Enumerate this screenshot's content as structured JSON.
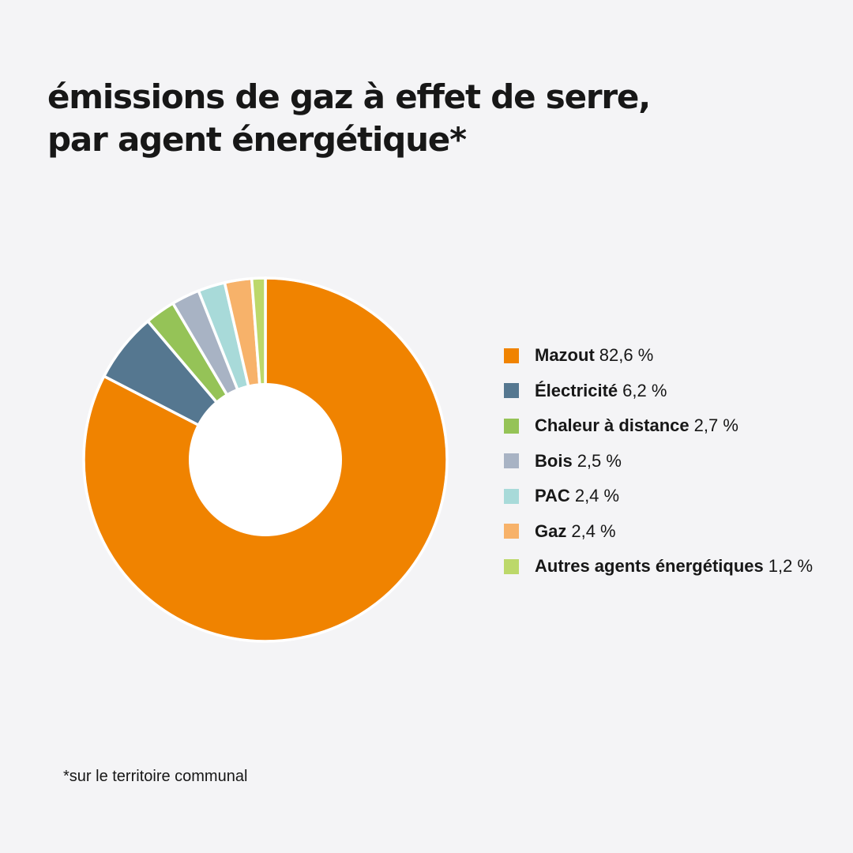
{
  "title_lines": [
    "émissions de gaz à effet de serre,",
    "par agent énergétique*"
  ],
  "footnote": "*sur le territoire communal",
  "chart_data": {
    "type": "pie",
    "variant": "donut",
    "legend_position": "right",
    "start_angle_deg": 0,
    "direction": "clockwise",
    "categories": [
      "Mazout",
      "Électricité",
      "Chaleur à distance",
      "Bois",
      "PAC",
      "Gaz",
      "Autres agents énergétiques"
    ],
    "values": [
      82.6,
      6.2,
      2.7,
      2.5,
      2.4,
      2.4,
      1.2
    ],
    "value_labels": [
      "82,6 %",
      "6,2 %",
      "2,7 %",
      "2,5 %",
      "2,4 %",
      "2,4 %",
      "1,2 %"
    ],
    "colors": [
      "#f08300",
      "#557790",
      "#95c357",
      "#a8b3c4",
      "#a8dad9",
      "#f7b26a",
      "#bcd86a"
    ],
    "hole_color": "#ffffff",
    "separator_color": "#ffffff"
  }
}
